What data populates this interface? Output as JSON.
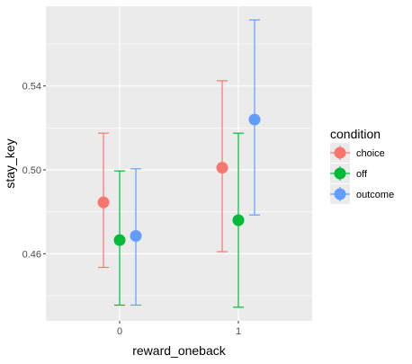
{
  "chart_data": {
    "type": "scatter",
    "xlabel": "reward_oneback",
    "ylabel": "stay_key",
    "categories": [
      "0",
      "1"
    ],
    "ylim": [
      0.428,
      0.578
    ],
    "yticks": [
      0.46,
      0.5,
      0.54
    ],
    "ytick_labels": [
      "0.46",
      "0.50",
      "0.54"
    ],
    "grid": true,
    "legend": {
      "title": "condition",
      "position": "right"
    },
    "series": [
      {
        "name": "choice",
        "color": "#F8766D",
        "points": [
          {
            "x": "0",
            "y": 0.4845,
            "ymin": 0.4535,
            "ymax": 0.5175
          },
          {
            "x": "1",
            "y": 0.501,
            "ymin": 0.461,
            "ymax": 0.5425
          }
        ]
      },
      {
        "name": "off",
        "color": "#00BA38",
        "points": [
          {
            "x": "0",
            "y": 0.4665,
            "ymin": 0.4355,
            "ymax": 0.4995
          },
          {
            "x": "1",
            "y": 0.476,
            "ymin": 0.4345,
            "ymax": 0.5175
          }
        ]
      },
      {
        "name": "outcome",
        "color": "#619CFF",
        "points": [
          {
            "x": "0",
            "y": 0.4685,
            "ymin": 0.4355,
            "ymax": 0.5005
          },
          {
            "x": "1",
            "y": 0.524,
            "ymin": 0.4785,
            "ymax": 0.5715
          }
        ]
      }
    ]
  }
}
